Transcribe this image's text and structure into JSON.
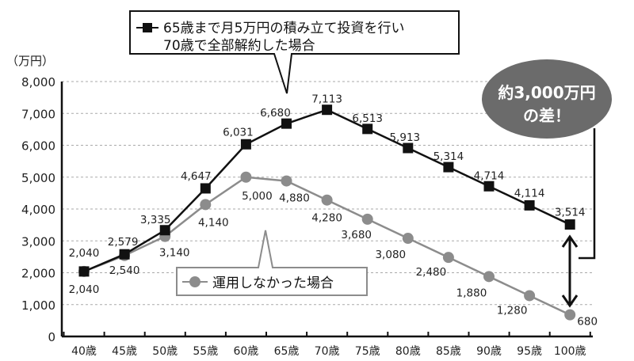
{
  "chart_data": {
    "type": "line",
    "ylabel": "（万円）",
    "ylim": [
      0,
      8000
    ],
    "yticks": [
      0,
      1000,
      2000,
      3000,
      4000,
      5000,
      6000,
      7000,
      8000
    ],
    "ytick_labels": [
      "0",
      "1,000",
      "2,000",
      "3,000",
      "4,000",
      "5,000",
      "6,000",
      "7,000",
      "8,000"
    ],
    "grid": true,
    "categories": [
      "40歳",
      "45歳",
      "50歳",
      "55歳",
      "60歳",
      "65歳",
      "70歳",
      "75歳",
      "80歳",
      "85歳",
      "90歳",
      "95歳",
      "100歳"
    ],
    "series": [
      {
        "name_line1": "65歳まで月5万円の積み立て投資を行い",
        "name_line2": "70歳で全部解約した場合",
        "color": "#111111",
        "marker": "square",
        "values": [
          2040,
          2579,
          3335,
          4647,
          6031,
          6680,
          7113,
          6513,
          5913,
          5314,
          4714,
          4114,
          3514
        ],
        "labels": [
          "2,040",
          "2,579",
          "3,335",
          "4,647",
          "6,031",
          "6,680",
          "7,113",
          "6,513",
          "5,913",
          "5,314",
          "4,714",
          "4,114",
          "3,514"
        ]
      },
      {
        "name": "運用しなかった場合",
        "color": "#8c8c8c",
        "marker": "circle",
        "values": [
          2040,
          2540,
          3140,
          4140,
          5000,
          4880,
          4280,
          3680,
          3080,
          2480,
          1880,
          1280,
          680
        ],
        "labels": [
          "2,040",
          "2,540",
          "3,140",
          "4,140",
          "5,000",
          "4,880",
          "4,280",
          "3,680",
          "3,080",
          "2,480",
          "1,880",
          "1,280",
          "680"
        ]
      }
    ],
    "annotation": {
      "line1": "約3,000万円",
      "line2": "の差！",
      "color": "#6b6b6b"
    }
  }
}
